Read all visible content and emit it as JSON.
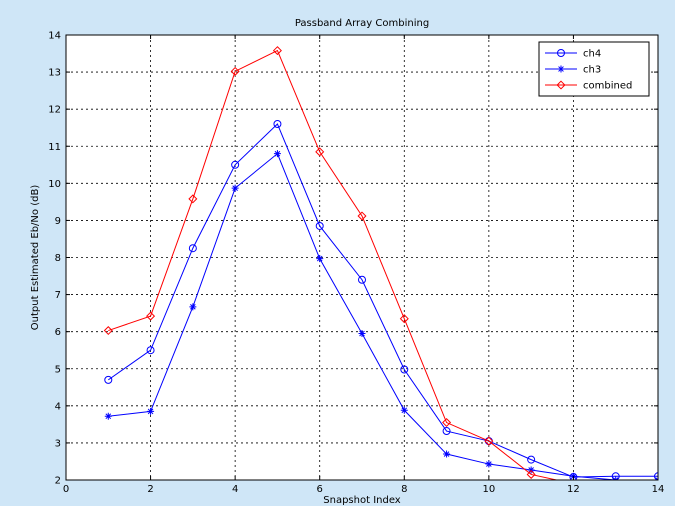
{
  "chart_data": {
    "type": "line",
    "title": "Passband Array Combining",
    "xlabel": "Snapshot Index",
    "ylabel": "Output Estimated Eb/No (dB)",
    "xlim": [
      0,
      14
    ],
    "ylim": [
      2,
      14
    ],
    "xticks": [
      0,
      2,
      4,
      6,
      8,
      10,
      12,
      14
    ],
    "yticks": [
      2,
      3,
      4,
      5,
      6,
      7,
      8,
      9,
      10,
      11,
      12,
      13,
      14
    ],
    "grid": true,
    "legend_position": "top-right",
    "series": [
      {
        "name": "ch4",
        "marker": "circle",
        "color": "#0000ff",
        "x": [
          1,
          2,
          3,
          4,
          5,
          6,
          7,
          8,
          9,
          10,
          11,
          12,
          13,
          14
        ],
        "y": [
          4.7,
          5.5,
          8.25,
          10.5,
          11.6,
          8.85,
          7.4,
          4.98,
          3.32,
          3.05,
          2.55,
          2.08,
          2.1,
          2.1
        ]
      },
      {
        "name": "ch3",
        "marker": "star",
        "color": "#0000ff",
        "x": [
          1,
          2,
          3,
          4,
          5,
          6,
          7,
          8,
          9,
          10,
          11,
          12,
          13,
          14
        ],
        "y": [
          3.72,
          3.85,
          6.67,
          9.87,
          10.8,
          7.97,
          5.95,
          3.88,
          2.7,
          2.43,
          2.27,
          2.1,
          2.0,
          2.0
        ]
      },
      {
        "name": "combined",
        "marker": "diamond",
        "color": "#ff0000",
        "x": [
          1,
          2,
          3,
          4,
          5,
          6,
          7,
          8,
          9,
          10,
          11,
          12
        ],
        "y": [
          6.03,
          6.42,
          9.58,
          13.02,
          13.58,
          10.85,
          9.12,
          6.35,
          3.55,
          3.05,
          2.15,
          1.9
        ]
      }
    ]
  }
}
